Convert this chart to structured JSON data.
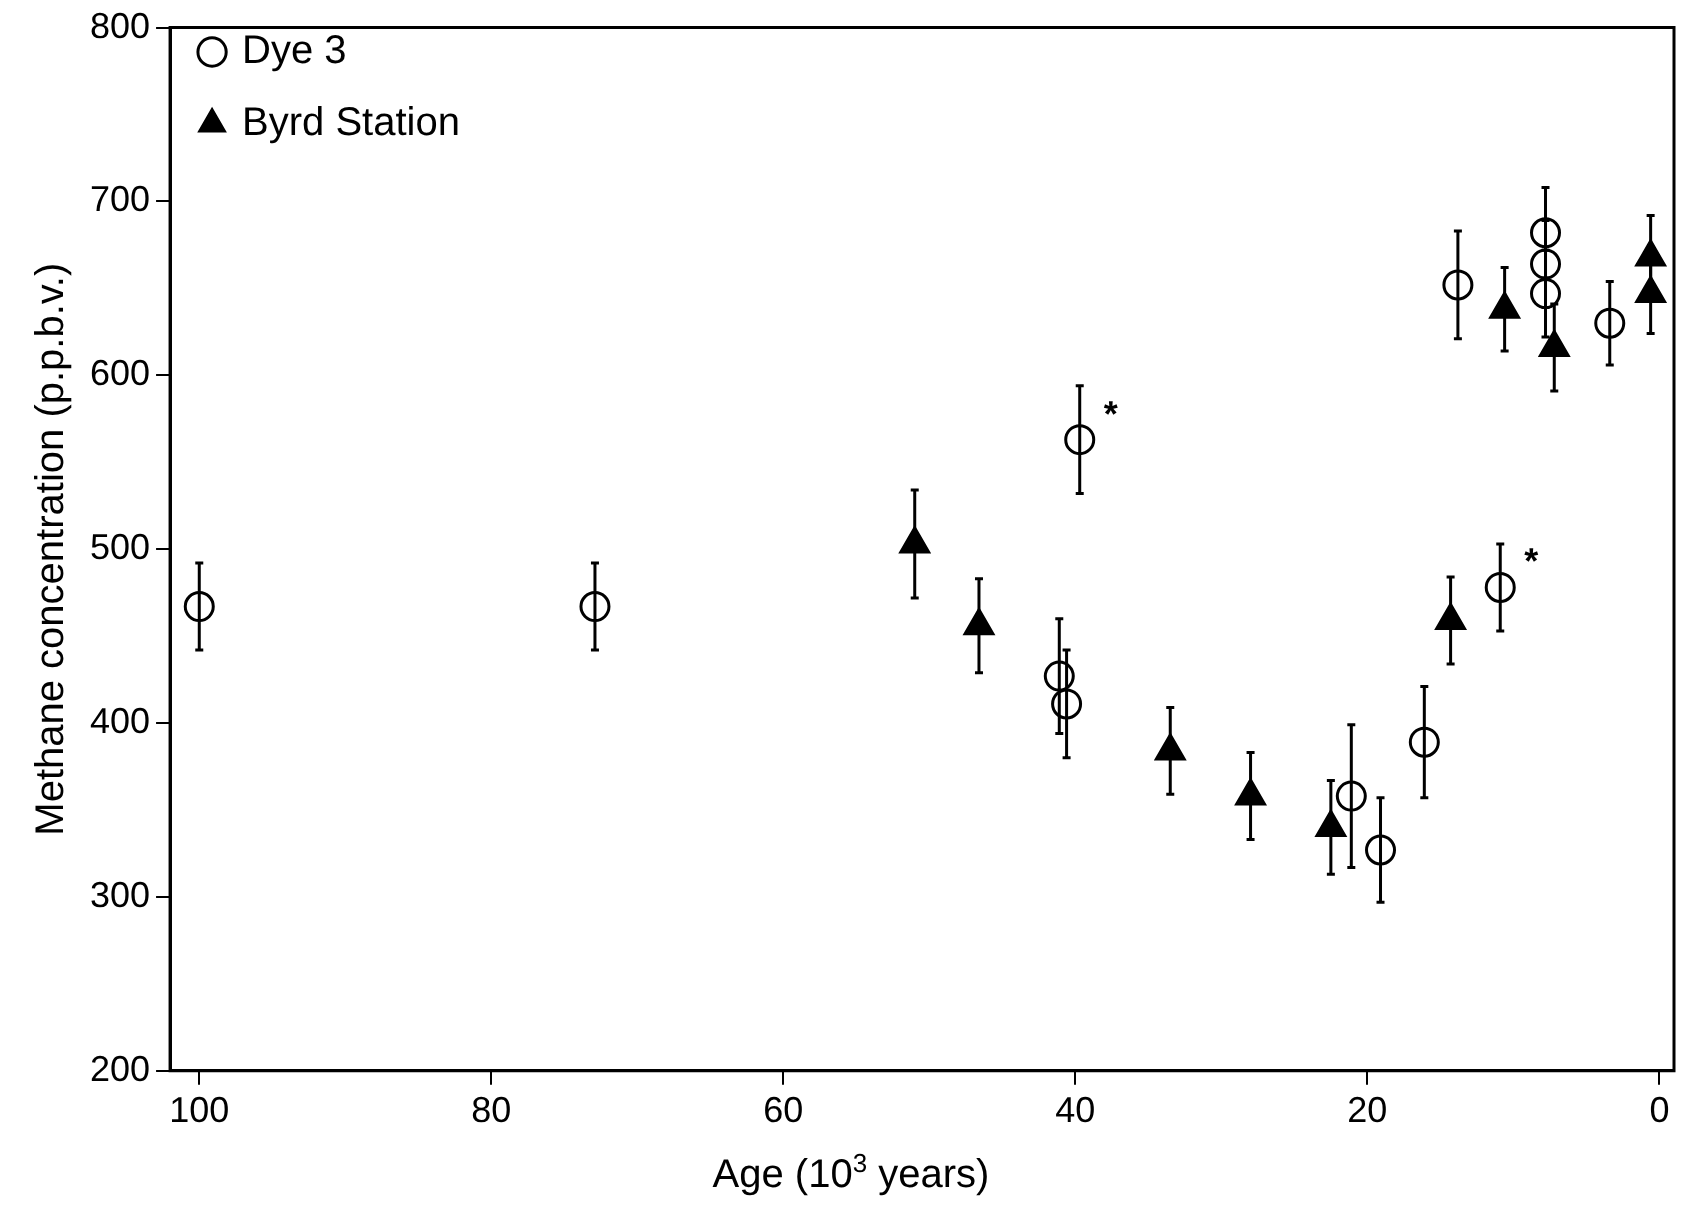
{
  "chart_data": {
    "type": "scatter",
    "xlabel": "Age (10$^{3}$ years)",
    "ylabel": "Methane concentration (p.p.b.v.)",
    "xlim": [
      102,
      -1
    ],
    "xticks": [
      100,
      80,
      60,
      40,
      20,
      0
    ],
    "ylim": [
      200,
      800
    ],
    "yticks": [
      200,
      300,
      400,
      500,
      600,
      700,
      800
    ],
    "grid": false,
    "legend": "top left",
    "series": [
      {
        "name": "Dye 3",
        "color": "#000000",
        "marker": "circle",
        "x": [
          100,
          72.9,
          39.7,
          13.8,
          7.8,
          7.8,
          7.8,
          3.4,
          10.9,
          41.1,
          40.6,
          21.1,
          19.1,
          16.1
        ],
        "values": [
          467,
          467,
          563,
          652,
          682,
          664,
          647,
          630,
          478,
          427,
          411,
          358,
          327,
          389
        ],
        "errors": [
          25,
          25,
          31,
          31,
          26,
          25,
          25,
          24,
          25,
          33,
          31,
          41,
          30,
          32
        ]
      },
      {
        "name": "Byrd Station",
        "color": "#000000",
        "marker": "triangle",
        "x": [
          51.0,
          46.6,
          33.5,
          28.0,
          22.5,
          14.3,
          10.6,
          7.2,
          0.6,
          0.6
        ],
        "values": [
          503,
          456,
          384,
          358,
          340,
          459,
          638,
          616,
          668,
          647
        ],
        "errors": [
          31,
          27,
          25,
          25,
          27,
          25,
          24,
          25,
          24,
          23
        ]
      }
    ],
    "annotations": [
      {
        "text": "*",
        "x": 39.7,
        "y": 563
      },
      {
        "text": "*",
        "x": 10.9,
        "y": 478
      }
    ]
  }
}
